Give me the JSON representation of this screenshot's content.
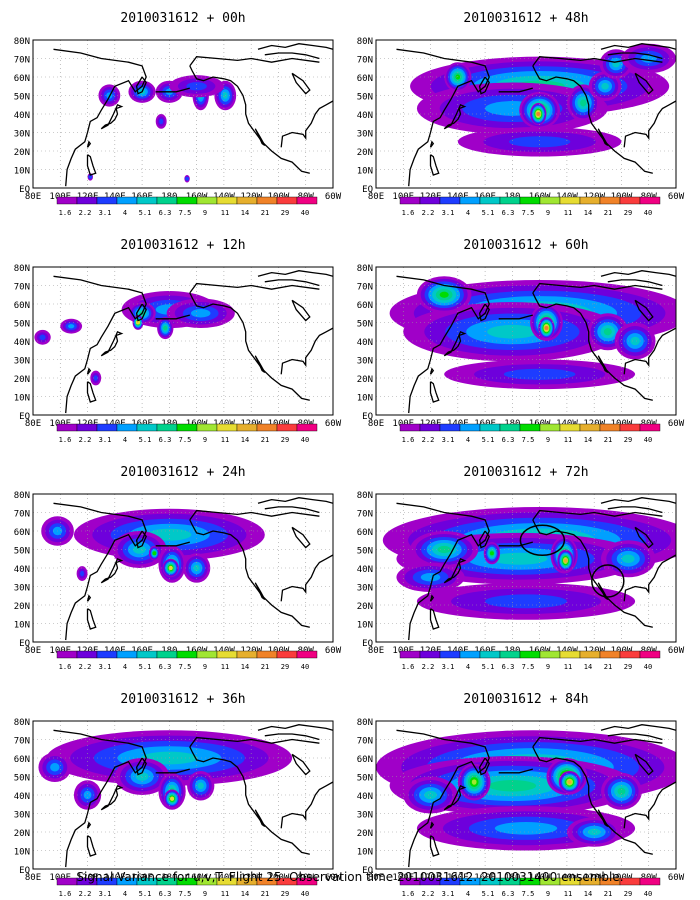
{
  "caption": "Signal Variance for u,v,T. Flight 25. Observation time 2010031612. 2010031400 ensemble.",
  "colorbar": {
    "levels": [
      "1.6",
      "2.2",
      "3.1",
      "4",
      "5.1",
      "6.3",
      "7.5",
      "9",
      "11",
      "14",
      "21",
      "29",
      "40"
    ],
    "colors": [
      "#a000c8",
      "#6e00dc",
      "#1e3cff",
      "#00a0ff",
      "#00c8c8",
      "#00d28c",
      "#00dc00",
      "#a0e632",
      "#e6dc32",
      "#e6af2d",
      "#f08228",
      "#fa3c3c",
      "#f00082"
    ]
  },
  "axes": {
    "x_ticks": [
      "80E",
      "100E",
      "120E",
      "140E",
      "160E",
      "180",
      "160W",
      "140W",
      "120W",
      "100W",
      "80W",
      "60W"
    ],
    "y_ticks": [
      "80N",
      "70N",
      "60N",
      "50N",
      "40N",
      "30N",
      "20N",
      "10N",
      "EQ"
    ]
  },
  "chart_data": [
    {
      "type": "heatmap",
      "title": "2010031612 + 00h",
      "blobs": [
        [
          180,
          52,
          10,
          6,
          3
        ],
        [
          160,
          52,
          10,
          6,
          4
        ],
        [
          136,
          50,
          8,
          6,
          3
        ],
        [
          203,
          50,
          6,
          8,
          4
        ],
        [
          221,
          50,
          8,
          8,
          4
        ],
        [
          200,
          55,
          20,
          6,
          2
        ],
        [
          174,
          36,
          4,
          4,
          2
        ],
        [
          122,
          6,
          2,
          2,
          2
        ],
        [
          193,
          5,
          2,
          2,
          2
        ]
      ]
    },
    {
      "type": "heatmap",
      "title": "2010031612 + 48h",
      "blobs": [
        [
          200,
          55,
          95,
          16,
          5
        ],
        [
          180,
          43,
          70,
          14,
          3
        ],
        [
          200,
          42,
          15,
          10,
          7
        ],
        [
          199,
          40,
          6,
          6,
          10
        ],
        [
          140,
          60,
          10,
          8,
          6
        ],
        [
          232,
          46,
          12,
          10,
          5
        ],
        [
          248,
          55,
          12,
          8,
          4
        ],
        [
          256,
          67,
          12,
          8,
          4
        ],
        [
          200,
          25,
          60,
          8,
          2
        ],
        [
          280,
          70,
          20,
          8,
          3
        ]
      ]
    },
    {
      "type": "heatmap",
      "title": "2010031612 + 12h",
      "blobs": [
        [
          180,
          57,
          35,
          10,
          3
        ],
        [
          160,
          55,
          10,
          6,
          5
        ],
        [
          157,
          50,
          4,
          4,
          8
        ],
        [
          177,
          47,
          6,
          6,
          5
        ],
        [
          108,
          48,
          8,
          4,
          3
        ],
        [
          87,
          42,
          6,
          4,
          2
        ],
        [
          126,
          20,
          4,
          4,
          2
        ],
        [
          203,
          55,
          25,
          8,
          3
        ]
      ]
    },
    {
      "type": "heatmap",
      "title": "2010031612 + 60h",
      "blobs": [
        [
          200,
          55,
          110,
          18,
          5
        ],
        [
          180,
          45,
          80,
          16,
          4
        ],
        [
          205,
          50,
          12,
          10,
          7
        ],
        [
          205,
          47,
          6,
          6,
          10
        ],
        [
          130,
          65,
          20,
          10,
          6
        ],
        [
          250,
          45,
          15,
          10,
          5
        ],
        [
          200,
          22,
          70,
          8,
          2
        ],
        [
          270,
          40,
          15,
          10,
          4
        ]
      ]
    },
    {
      "type": "heatmap",
      "title": "2010031612 + 24h",
      "blobs": [
        [
          180,
          58,
          70,
          14,
          4
        ],
        [
          158,
          50,
          20,
          10,
          4
        ],
        [
          182,
          42,
          10,
          10,
          5
        ],
        [
          181,
          40,
          6,
          5,
          8
        ],
        [
          200,
          40,
          10,
          8,
          4
        ],
        [
          98,
          60,
          12,
          8,
          3
        ],
        [
          116,
          37,
          4,
          4,
          2
        ],
        [
          169,
          48,
          4,
          4,
          6
        ]
      ]
    },
    {
      "type": "heatmap",
      "title": "2010031612 + 72h",
      "blobs": [
        [
          200,
          55,
          115,
          18,
          5
        ],
        [
          185,
          45,
          90,
          14,
          4
        ],
        [
          218,
          47,
          10,
          10,
          7
        ],
        [
          219,
          44,
          6,
          6,
          9
        ],
        [
          130,
          50,
          25,
          10,
          5
        ],
        [
          165,
          48,
          6,
          6,
          6
        ],
        [
          265,
          45,
          20,
          10,
          4
        ],
        [
          190,
          22,
          80,
          10,
          2
        ],
        [
          120,
          35,
          25,
          8,
          3
        ]
      ]
    },
    {
      "type": "heatmap",
      "title": "2010031612 + 36h",
      "blobs": [
        [
          180,
          60,
          90,
          15,
          4
        ],
        [
          160,
          50,
          20,
          10,
          4
        ],
        [
          182,
          42,
          10,
          10,
          5
        ],
        [
          182,
          38,
          6,
          5,
          8
        ],
        [
          96,
          55,
          12,
          8,
          3
        ],
        [
          203,
          45,
          10,
          8,
          4
        ],
        [
          120,
          40,
          10,
          8,
          3
        ]
      ]
    },
    {
      "type": "heatmap",
      "title": "2010031612 + 84h",
      "blobs": [
        [
          195,
          55,
          115,
          20,
          5
        ],
        [
          180,
          45,
          90,
          16,
          5
        ],
        [
          152,
          47,
          12,
          10,
          7
        ],
        [
          220,
          50,
          15,
          10,
          8
        ],
        [
          222,
          47,
          8,
          6,
          9
        ],
        [
          260,
          42,
          15,
          10,
          5
        ],
        [
          190,
          22,
          80,
          12,
          3
        ],
        [
          120,
          40,
          20,
          10,
          4
        ],
        [
          240,
          20,
          20,
          8,
          4
        ]
      ]
    }
  ]
}
